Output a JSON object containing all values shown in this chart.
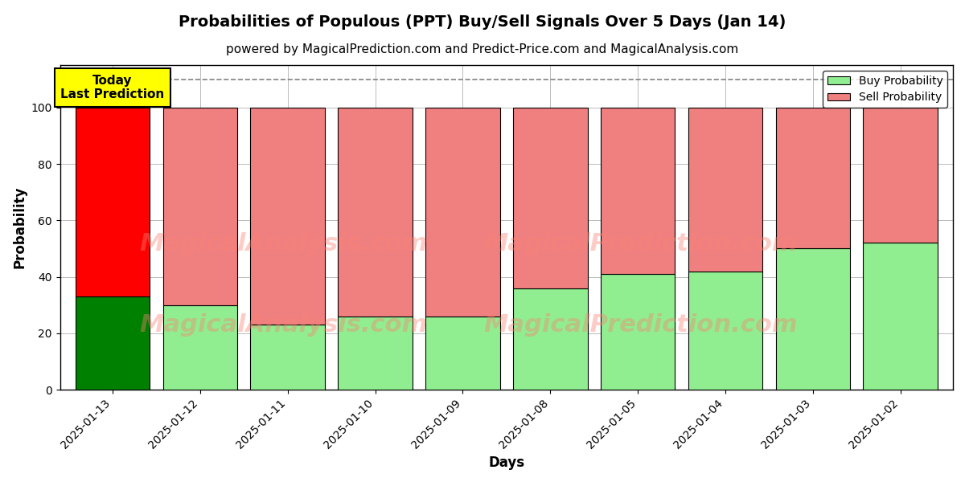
{
  "title": "Probabilities of Populous (PPT) Buy/Sell Signals Over 5 Days (Jan 14)",
  "subtitle": "powered by MagicalPrediction.com and Predict-Price.com and MagicalAnalysis.com",
  "xlabel": "Days",
  "ylabel": "Probability",
  "watermark_line1": "MagicalAnalysis.com",
  "watermark_line2": "MagicalPrediction.com",
  "dates": [
    "2025-01-13",
    "2025-01-12",
    "2025-01-11",
    "2025-01-10",
    "2025-01-09",
    "2025-01-08",
    "2025-01-05",
    "2025-01-04",
    "2025-01-03",
    "2025-01-02"
  ],
  "buy_probs": [
    33,
    30,
    23,
    26,
    26,
    36,
    41,
    42,
    50,
    52
  ],
  "sell_probs": [
    67,
    70,
    77,
    74,
    74,
    64,
    59,
    58,
    50,
    48
  ],
  "today_bar_buy_color": "#008000",
  "today_bar_sell_color": "#ff0000",
  "other_bar_buy_color": "#90EE90",
  "other_bar_sell_color": "#F08080",
  "today_label_bg": "#ffff00",
  "today_label_text": "Today\nLast Prediction",
  "legend_buy_color": "#90EE90",
  "legend_sell_color": "#F08080",
  "ylim": [
    0,
    115
  ],
  "yticks": [
    0,
    20,
    40,
    60,
    80,
    100
  ],
  "dashed_line_y": 110,
  "bar_edgecolor": "#000000",
  "bar_linewidth": 0.8,
  "bg_color": "#ffffff",
  "grid_color": "#bbbbbb",
  "title_fontsize": 14,
  "subtitle_fontsize": 11,
  "axis_label_fontsize": 12,
  "tick_fontsize": 10,
  "bar_width": 0.85
}
